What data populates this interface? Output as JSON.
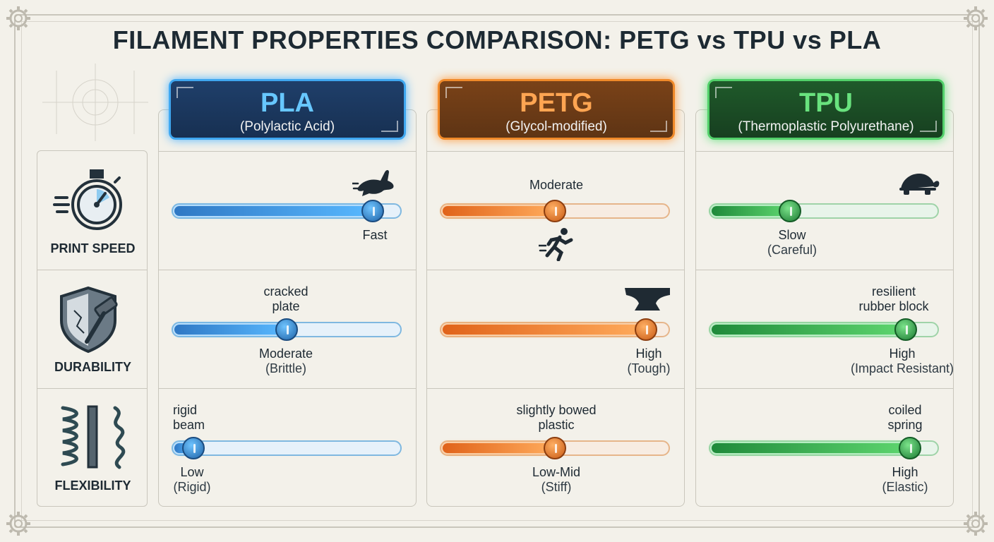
{
  "title": "FILAMENT PROPERTIES COMPARISON: PETG vs TPU vs PLA",
  "rows": [
    {
      "label": "PRINT SPEED",
      "icon": "stopwatch-icon"
    },
    {
      "label": "DURABILITY",
      "icon": "shield-hammer-icon"
    },
    {
      "label": "FLEXIBILITY",
      "icon": "springs-icon"
    }
  ],
  "materials": [
    {
      "name": "PLA",
      "subtitle": "(Polylactic Acid)",
      "accent": "#3fa7f0",
      "speed": {
        "level": 0.88,
        "value": "Fast",
        "note": "",
        "icon": "rabbit-icon"
      },
      "durability": {
        "level": 0.5,
        "value": "Moderate",
        "note": "(Brittle)",
        "caption1": "cracked",
        "caption2": "plate"
      },
      "flexibility": {
        "level": 0.09,
        "value": "Low",
        "note": "(Rigid)",
        "caption1": "rigid",
        "caption2": "beam"
      }
    },
    {
      "name": "PETG",
      "subtitle": "(Glycol-modified)",
      "accent": "#f08a2a",
      "speed": {
        "level": 0.5,
        "value": "Moderate",
        "note": "",
        "icon": "runner-icon"
      },
      "durability": {
        "level": 0.9,
        "value": "High",
        "note": "(Tough)",
        "icon": "anvil-icon"
      },
      "flexibility": {
        "level": 0.5,
        "value": "Low-Mid",
        "note": "(Stiff)",
        "caption1": "slightly bowed",
        "caption2": "plastic"
      }
    },
    {
      "name": "TPU",
      "subtitle": "(Thermoplastic Polyurethane)",
      "accent": "#52d06a",
      "speed": {
        "level": 0.35,
        "value": "Slow",
        "note": "(Careful)",
        "icon": "turtle-icon"
      },
      "durability": {
        "level": 0.86,
        "value": "High",
        "note": "(Impact Resistant)",
        "caption1": "resilient",
        "caption2": "rubber block"
      },
      "flexibility": {
        "level": 0.88,
        "value": "High",
        "note": "(Elastic)",
        "caption1": "coiled",
        "caption2": "spring"
      }
    }
  ]
}
